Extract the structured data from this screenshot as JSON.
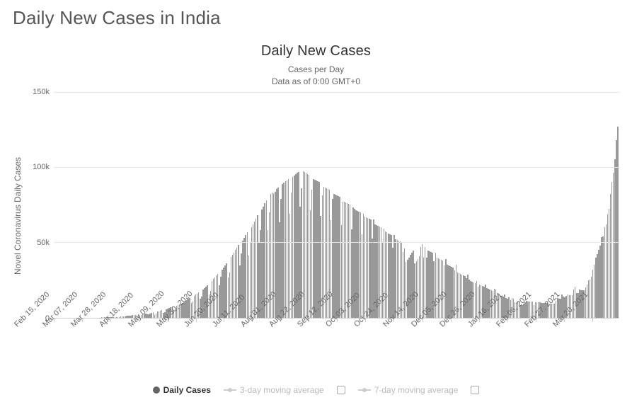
{
  "page_title": "Daily New Cases in India",
  "chart": {
    "type": "bar",
    "title": "Daily New Cases",
    "subtitle_line1": "Cases per Day",
    "subtitle_line2": "Data as of 0:00 GMT+0",
    "y_axis_label": "Novel Coronavirus Daily Cases",
    "ylim": [
      0,
      150000
    ],
    "yticks": [
      {
        "value": 0,
        "label": "0"
      },
      {
        "value": 50000,
        "label": "50k"
      },
      {
        "value": 100000,
        "label": "100k"
      },
      {
        "value": 150000,
        "label": "150k"
      }
    ],
    "xticks": [
      {
        "pos": 0.0,
        "label": "Feb 15, 2020"
      },
      {
        "pos": 0.05,
        "label": "Mar 07, 2020"
      },
      {
        "pos": 0.1,
        "label": "Mar 28, 2020"
      },
      {
        "pos": 0.15,
        "label": "Apr 18, 2020"
      },
      {
        "pos": 0.201,
        "label": "May 09, 2020"
      },
      {
        "pos": 0.251,
        "label": "May 30, 2020"
      },
      {
        "pos": 0.301,
        "label": "Jun 20, 2020"
      },
      {
        "pos": 0.351,
        "label": "Jul 11, 2020"
      },
      {
        "pos": 0.401,
        "label": "Aug 01, 2020"
      },
      {
        "pos": 0.451,
        "label": "Aug 22, 2020"
      },
      {
        "pos": 0.501,
        "label": "Sep 12, 2020"
      },
      {
        "pos": 0.551,
        "label": "Oct 03, 2020"
      },
      {
        "pos": 0.601,
        "label": "Oct 24, 2020"
      },
      {
        "pos": 0.652,
        "label": "Nov 14, 2020"
      },
      {
        "pos": 0.702,
        "label": "Dec 05, 2020"
      },
      {
        "pos": 0.752,
        "label": "Dec 26, 2020"
      },
      {
        "pos": 0.802,
        "label": "Jan 16, 2021"
      },
      {
        "pos": 0.852,
        "label": "Feb 06, 2021"
      },
      {
        "pos": 0.902,
        "label": "Feb 27, 2021"
      },
      {
        "pos": 0.952,
        "label": "Mar 20, 2021"
      }
    ],
    "bar_color": "#999999",
    "background_color": "#ffffff",
    "grid_color": "#e6e6e6",
    "values": [
      0,
      0,
      0,
      0,
      0,
      0,
      0,
      0,
      0,
      0,
      0,
      0,
      0,
      0,
      0,
      0,
      0,
      0,
      0,
      0,
      0,
      0,
      0,
      0,
      0,
      0,
      0,
      0,
      10,
      20,
      30,
      40,
      60,
      80,
      100,
      120,
      150,
      180,
      220,
      260,
      300,
      350,
      400,
      450,
      520,
      600,
      700,
      800,
      900,
      1000,
      1100,
      1200,
      1350,
      1500,
      1650,
      1800,
      1900,
      1600,
      1400,
      1800,
      2000,
      2300,
      2550,
      2200,
      2100,
      2800,
      3100,
      3400,
      1900,
      2600,
      3900,
      4200,
      4500,
      4800,
      3200,
      3800,
      5500,
      5900,
      6300,
      6700,
      7100,
      4500,
      5300,
      7900,
      8400,
      8900,
      9400,
      9900,
      10500,
      11100,
      11700,
      12300,
      13000,
      9500,
      10800,
      14400,
      15200,
      16000,
      16800,
      12700,
      13800,
      18600,
      19500,
      20500,
      21500,
      15500,
      17800,
      24500,
      25600,
      26800,
      28000,
      29200,
      21300,
      27000,
      32000,
      33300,
      34700,
      36100,
      26500,
      30000,
      40300,
      41800,
      43300,
      44900,
      46500,
      48100,
      34800,
      42500,
      51100,
      52900,
      54700,
      56500,
      41400,
      50000,
      60100,
      62000,
      63900,
      65800,
      67800,
      49800,
      58000,
      71800,
      73800,
      75900,
      78000,
      58100,
      70000,
      82200,
      83000,
      82800,
      83600,
      85400,
      86200,
      63500,
      79000,
      88800,
      89600,
      90400,
      91200,
      92000,
      68800,
      83000,
      93600,
      94400,
      95200,
      96000,
      96800,
      73600,
      86000,
      97000,
      96500,
      96000,
      95500,
      95000,
      71500,
      85000,
      92000,
      91500,
      91000,
      90500,
      90000,
      67500,
      81000,
      87000,
      86500,
      86000,
      85500,
      85000,
      64500,
      79000,
      82000,
      81500,
      81000,
      80500,
      80000,
      61500,
      77000,
      77000,
      76500,
      76000,
      75500,
      75000,
      58500,
      73000,
      72000,
      71500,
      71000,
      70500,
      70000,
      55500,
      69000,
      67000,
      66500,
      66000,
      65500,
      65000,
      52500,
      65000,
      62000,
      61500,
      61000,
      60500,
      60000,
      49500,
      59000,
      57000,
      56500,
      56000,
      55500,
      55000,
      46500,
      55000,
      52000,
      51500,
      51000,
      50500,
      50000,
      43500,
      46000,
      37000,
      38500,
      40000,
      41500,
      43000,
      44500,
      36000,
      37500,
      39000,
      40500,
      47000,
      48500,
      40000,
      47000,
      40000,
      44500,
      44000,
      43500,
      43000,
      37500,
      43000,
      40000,
      39500,
      39000,
      38500,
      38000,
      34500,
      39000,
      35000,
      34500,
      34000,
      33500,
      33000,
      31500,
      35000,
      30000,
      29500,
      29000,
      28500,
      28000,
      27500,
      26000,
      28500,
      25000,
      24500,
      24000,
      23500,
      23000,
      24500,
      20500,
      22000,
      21500,
      21000,
      20500,
      22000,
      19500,
      19000,
      18500,
      18000,
      17500,
      19000,
      18500,
      16000,
      15500,
      15000,
      14500,
      14000,
      15500,
      13000,
      12500,
      13500,
      11500,
      13000,
      12500,
      10000,
      9500,
      10400,
      11300,
      8200,
      8100,
      9000,
      10000,
      11000,
      10800,
      10700,
      10600,
      10500,
      8400,
      10300,
      10200,
      10100,
      10000,
      9900,
      9800,
      9700,
      9600,
      9500,
      9400,
      9300,
      9200,
      9100,
      9000,
      11000,
      12800,
      12700,
      12600,
      15500,
      14000,
      13300,
      14200,
      15100,
      15000,
      14900,
      14800,
      18700,
      20600,
      16500,
      16400,
      18500,
      18200,
      18100,
      18000,
      19900,
      21800,
      24700,
      25000,
      27000,
      32000,
      35000,
      40000,
      42000,
      45000,
      48000,
      53500,
      54000,
      60000,
      62000,
      68500,
      72000,
      82000,
      90000,
      96000,
      105000,
      118000,
      127000
    ]
  },
  "legend": {
    "items": [
      {
        "label": "Daily Cases",
        "kind": "dot",
        "color": "#666666",
        "active": true,
        "checkbox": false
      },
      {
        "label": "3-day moving average",
        "kind": "line",
        "color": "#cccccc",
        "active": false,
        "checkbox": true
      },
      {
        "label": "7-day moving average",
        "kind": "line",
        "color": "#cccccc",
        "active": false,
        "checkbox": true
      }
    ]
  }
}
